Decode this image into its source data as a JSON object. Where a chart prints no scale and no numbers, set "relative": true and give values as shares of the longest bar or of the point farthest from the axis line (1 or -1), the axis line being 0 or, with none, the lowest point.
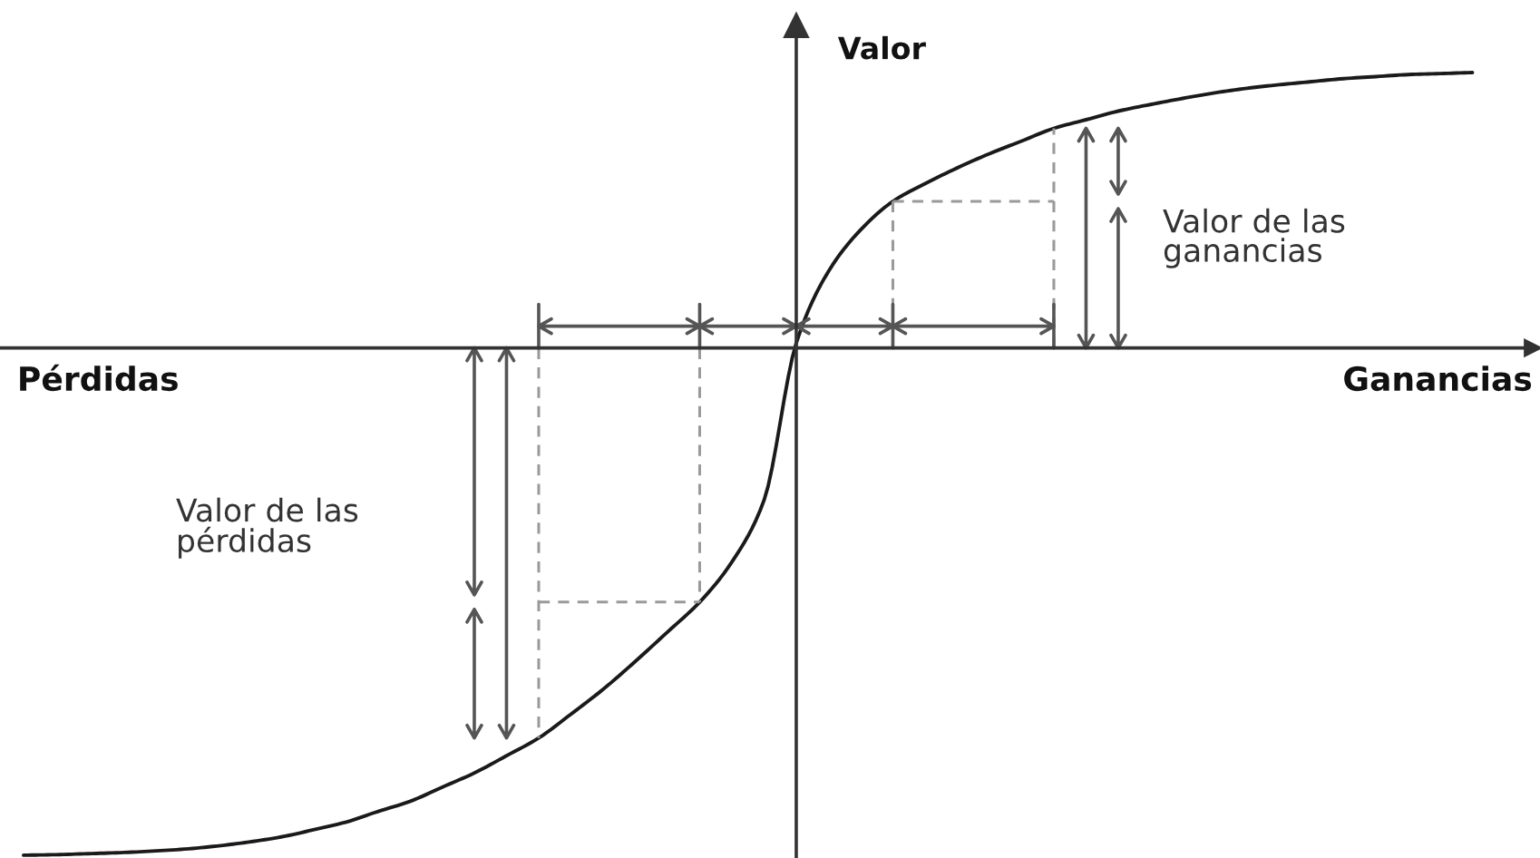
{
  "chart_data": {
    "type": "line",
    "relative": true,
    "categories": [
      null,
      null,
      null,
      null,
      null,
      null,
      null,
      null,
      null,
      null,
      null,
      null,
      null,
      null,
      null,
      null,
      null,
      null,
      null,
      null,
      null,
      null,
      null,
      null,
      null,
      null,
      null,
      null,
      null,
      null,
      null,
      null,
      null,
      null,
      null,
      null,
      null,
      null,
      null,
      null,
      null,
      null,
      null,
      null,
      null,
      null
    ],
    "series": [
      {
        "color": "#1a1a1a",
        "values": [
          -1,
          -0.999,
          -0.997,
          -0.995,
          -0.992,
          -0.988,
          -0.982,
          -0.974,
          -0.964,
          -0.95,
          -0.935,
          -0.914,
          -0.894,
          -0.866,
          -0.838,
          -0.804,
          -0.769,
          -0.722,
          -0.673,
          -0.618,
          -0.56,
          -0.501,
          -0.422,
          -0.3,
          0.01,
          0.151,
          0.233,
          0.289,
          0.324,
          0.355,
          0.383,
          0.408,
          0.433,
          0.45,
          0.467,
          0.48,
          0.492,
          0.503,
          0.512,
          0.519,
          0.525,
          0.531,
          0.535,
          0.539,
          0.541,
          0.543
        ]
      }
    ],
    "xlabel": "Ganancias",
    "ylabel": "Valor",
    "annotations": [
      "Pérdidas",
      "Valor de las\nganancias",
      "Valor de las\npérdidas"
    ]
  }
}
